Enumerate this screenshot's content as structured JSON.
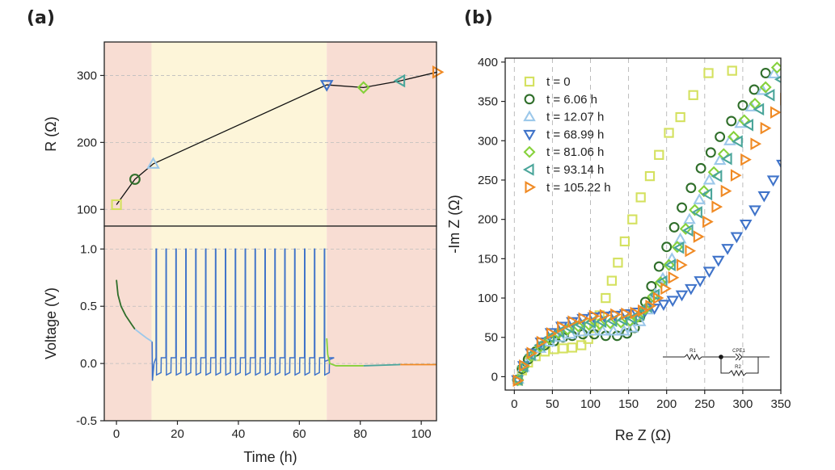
{
  "panels": {
    "a": "(a)",
    "b": "(b)"
  },
  "chart_data": [
    {
      "id": "a-top",
      "type": "line",
      "ylabel": "R (Ω)",
      "xlim": [
        -4,
        105
      ],
      "ylim": [
        75,
        350
      ],
      "yticks": [
        100,
        200,
        300
      ],
      "x": [
        0,
        6.06,
        12.07,
        68.99,
        81.06,
        93.14,
        105.22
      ],
      "series": [
        {
          "values": [
            107,
            145,
            168,
            286,
            282,
            292,
            305
          ]
        }
      ],
      "markers": [
        {
          "shape": "square",
          "color": "#d4e15f"
        },
        {
          "shape": "circle",
          "color": "#2f6e2a"
        },
        {
          "shape": "triangle-up",
          "color": "#9cc8ea"
        },
        {
          "shape": "triangle-down",
          "color": "#3f73c9"
        },
        {
          "shape": "diamond",
          "color": "#86d13b"
        },
        {
          "shape": "triangle-left",
          "color": "#4aa59a"
        },
        {
          "shape": "triangle-right",
          "color": "#f08a24"
        }
      ],
      "shaded_regions": [
        {
          "from": -4,
          "to": 11.5,
          "color": "#f8ddd3"
        },
        {
          "from": 11.5,
          "to": 69,
          "color": "#fdf5d9"
        },
        {
          "from": 69,
          "to": 105,
          "color": "#f8ddd3"
        }
      ]
    },
    {
      "id": "a-bottom",
      "type": "line",
      "xlabel": "Time (h)",
      "ylabel": "Voltage (V)",
      "xlim": [
        -4,
        105
      ],
      "ylim": [
        -0.5,
        1.2
      ],
      "xticks": [
        0,
        20,
        40,
        60,
        80,
        100
      ],
      "yticks": [
        -0.5,
        0.0,
        0.5,
        1.0
      ],
      "ytick_labels": [
        "-0.5",
        "0.0",
        "0.5",
        "1.0"
      ],
      "relaxation_1": {
        "color_a": "#2f6e2a",
        "color_b": "#9cc8ea",
        "points": [
          [
            0,
            0.73
          ],
          [
            0.5,
            0.6
          ],
          [
            1.5,
            0.5
          ],
          [
            3,
            0.42
          ],
          [
            5,
            0.34
          ],
          [
            6.06,
            0.3
          ],
          [
            8,
            0.26
          ],
          [
            10,
            0.22
          ],
          [
            11.7,
            0.19
          ]
        ]
      },
      "cycling": {
        "color": "#3f73c9",
        "drop": [
          [
            11.7,
            0.19
          ],
          [
            11.8,
            -0.15
          ],
          [
            12.3,
            0.0
          ]
        ],
        "cycles": 18,
        "t_start": 13,
        "t_end": 68.2,
        "v_rest": 0.0,
        "v_peak": 1.0,
        "v_dip": -0.1,
        "v_low": -0.08,
        "v_high": 0.05
      },
      "relaxation_2": {
        "segments": [
          {
            "color": "#86d13b",
            "points": [
              [
                68.99,
                0.22
              ],
              [
                69.3,
                0.08
              ],
              [
                70,
                0.0
              ],
              [
                72,
                -0.02
              ],
              [
                81.06,
                -0.02
              ]
            ]
          },
          {
            "color": "#4aa59a",
            "points": [
              [
                81.06,
                -0.02
              ],
              [
                93.14,
                -0.01
              ]
            ]
          },
          {
            "color": "#f08a24",
            "points": [
              [
                93.14,
                -0.01
              ],
              [
                105,
                -0.01
              ]
            ]
          }
        ]
      },
      "shaded_regions": [
        {
          "from": -4,
          "to": 11.5,
          "color": "#f8ddd3"
        },
        {
          "from": 11.5,
          "to": 69,
          "color": "#fdf5d9"
        },
        {
          "from": 69,
          "to": 105,
          "color": "#f8ddd3"
        }
      ]
    },
    {
      "id": "b",
      "type": "scatter",
      "xlabel": "Re Z (Ω)",
      "ylabel": "-Im Z (Ω)",
      "xlim": [
        -12,
        350
      ],
      "ylim": [
        -17,
        405
      ],
      "xticks": [
        0,
        50,
        100,
        150,
        200,
        250,
        300,
        350
      ],
      "yticks": [
        0,
        50,
        100,
        150,
        200,
        250,
        300,
        350,
        400
      ],
      "grid": "vertical dashed",
      "legend_position": "top-left",
      "series": [
        {
          "name": "t = 0",
          "shape": "square",
          "color": "#d4e15f",
          "points": [
            [
              5,
              -5
            ],
            [
              10,
              8
            ],
            [
              18,
              18
            ],
            [
              28,
              26
            ],
            [
              40,
              32
            ],
            [
              52,
              35
            ],
            [
              64,
              36
            ],
            [
              76,
              37
            ],
            [
              88,
              40
            ],
            [
              97,
              48
            ],
            [
              105,
              62
            ],
            [
              112,
              78
            ],
            [
              120,
              100
            ],
            [
              128,
              122
            ],
            [
              136,
              145
            ],
            [
              145,
              172
            ],
            [
              155,
              200
            ],
            [
              166,
              228
            ],
            [
              178,
              255
            ],
            [
              190,
              282
            ],
            [
              203,
              310
            ],
            [
              218,
              330
            ],
            [
              235,
              358
            ],
            [
              255,
              386
            ],
            [
              286,
              389
            ]
          ]
        },
        {
          "name": "t = 6.06 h",
          "shape": "circle",
          "color": "#2f6e2a",
          "points": [
            [
              4,
              -4
            ],
            [
              10,
              10
            ],
            [
              18,
              22
            ],
            [
              28,
              32
            ],
            [
              40,
              40
            ],
            [
              52,
              45
            ],
            [
              64,
              50
            ],
            [
              76,
              52
            ],
            [
              90,
              54
            ],
            [
              105,
              54
            ],
            [
              120,
              52
            ],
            [
              135,
              52
            ],
            [
              148,
              55
            ],
            [
              158,
              62
            ],
            [
              165,
              76
            ],
            [
              172,
              95
            ],
            [
              180,
              115
            ],
            [
              190,
              140
            ],
            [
              200,
              165
            ],
            [
              210,
              190
            ],
            [
              220,
              215
            ],
            [
              232,
              240
            ],
            [
              245,
              265
            ],
            [
              258,
              285
            ],
            [
              270,
              305
            ],
            [
              285,
              325
            ],
            [
              300,
              345
            ],
            [
              315,
              365
            ],
            [
              330,
              386
            ]
          ]
        },
        {
          "name": "t = 12.07 h",
          "shape": "triangle-up",
          "color": "#9cc8ea",
          "points": [
            [
              5,
              -3
            ],
            [
              12,
              12
            ],
            [
              22,
              26
            ],
            [
              34,
              36
            ],
            [
              46,
              44
            ],
            [
              60,
              50
            ],
            [
              74,
              54
            ],
            [
              88,
              57
            ],
            [
              102,
              58
            ],
            [
              116,
              58
            ],
            [
              130,
              58
            ],
            [
              144,
              58
            ],
            [
              155,
              62
            ],
            [
              165,
              70
            ],
            [
              175,
              85
            ],
            [
              185,
              105
            ],
            [
              195,
              125
            ],
            [
              207,
              150
            ],
            [
              218,
              175
            ],
            [
              230,
              200
            ],
            [
              243,
              225
            ],
            [
              256,
              250
            ],
            [
              270,
              275
            ],
            [
              283,
              300
            ],
            [
              297,
              322
            ],
            [
              311,
              343
            ],
            [
              326,
              364
            ],
            [
              341,
              385
            ]
          ]
        },
        {
          "name": "t = 68.99 h",
          "shape": "triangle-down",
          "color": "#3f73c9",
          "points": [
            [
              4,
              -4
            ],
            [
              12,
              14
            ],
            [
              22,
              30
            ],
            [
              35,
              44
            ],
            [
              48,
              56
            ],
            [
              62,
              64
            ],
            [
              76,
              70
            ],
            [
              90,
              74
            ],
            [
              104,
              76
            ],
            [
              118,
              77
            ],
            [
              132,
              78
            ],
            [
              146,
              80
            ],
            [
              160,
              82
            ],
            [
              172,
              84
            ],
            [
              184,
              87
            ],
            [
              196,
              92
            ],
            [
              208,
              97
            ],
            [
              220,
              104
            ],
            [
              232,
              112
            ],
            [
              244,
              122
            ],
            [
              256,
              134
            ],
            [
              268,
              148
            ],
            [
              280,
              163
            ],
            [
              292,
              178
            ],
            [
              304,
              194
            ],
            [
              316,
              212
            ],
            [
              328,
              230
            ],
            [
              340,
              250
            ],
            [
              352,
              270
            ]
          ]
        },
        {
          "name": "t = 81.06 h",
          "shape": "diamond",
          "color": "#86d13b",
          "points": [
            [
              5,
              -4
            ],
            [
              12,
              12
            ],
            [
              22,
              26
            ],
            [
              34,
              38
            ],
            [
              46,
              48
            ],
            [
              58,
              55
            ],
            [
              70,
              60
            ],
            [
              84,
              64
            ],
            [
              98,
              66
            ],
            [
              112,
              67
            ],
            [
              126,
              68
            ],
            [
              140,
              69
            ],
            [
              152,
              71
            ],
            [
              162,
              76
            ],
            [
              172,
              86
            ],
            [
              182,
              102
            ],
            [
              192,
              120
            ],
            [
              203,
              142
            ],
            [
              214,
              165
            ],
            [
              225,
              188
            ],
            [
              237,
              212
            ],
            [
              249,
              236
            ],
            [
              262,
              260
            ],
            [
              275,
              283
            ],
            [
              288,
              305
            ],
            [
              302,
              326
            ],
            [
              316,
              347
            ],
            [
              330,
              368
            ],
            [
              345,
              393
            ]
          ]
        },
        {
          "name": "t = 93.14 h",
          "shape": "triangle-left",
          "color": "#4aa59a",
          "points": [
            [
              5,
              -4
            ],
            [
              12,
              13
            ],
            [
              22,
              28
            ],
            [
              34,
              40
            ],
            [
              47,
              50
            ],
            [
              60,
              57
            ],
            [
              73,
              62
            ],
            [
              87,
              66
            ],
            [
              101,
              69
            ],
            [
              115,
              70
            ],
            [
              129,
              71
            ],
            [
              143,
              72
            ],
            [
              155,
              74
            ],
            [
              165,
              79
            ],
            [
              175,
              89
            ],
            [
              185,
              104
            ],
            [
              195,
              121
            ],
            [
              206,
              142
            ],
            [
              217,
              164
            ],
            [
              229,
              186
            ],
            [
              241,
              209
            ],
            [
              254,
              232
            ],
            [
              267,
              255
            ],
            [
              280,
              277
            ],
            [
              294,
              299
            ],
            [
              308,
              320
            ],
            [
              322,
              340
            ],
            [
              336,
              358
            ],
            [
              350,
              378
            ]
          ]
        },
        {
          "name": "t = 105.22 h",
          "shape": "triangle-right",
          "color": "#f08a24",
          "points": [
            [
              4,
              -5
            ],
            [
              12,
              14
            ],
            [
              22,
              30
            ],
            [
              35,
              44
            ],
            [
              48,
              55
            ],
            [
              62,
              63
            ],
            [
              76,
              70
            ],
            [
              90,
              74
            ],
            [
              104,
              77
            ],
            [
              118,
              78
            ],
            [
              132,
              79
            ],
            [
              146,
              80
            ],
            [
              158,
              81
            ],
            [
              168,
              84
            ],
            [
              178,
              90
            ],
            [
              188,
              100
            ],
            [
              198,
              112
            ],
            [
              208,
              126
            ],
            [
              219,
              142
            ],
            [
              230,
              160
            ],
            [
              241,
              178
            ],
            [
              253,
              197
            ],
            [
              265,
              216
            ],
            [
              277,
              236
            ],
            [
              290,
              256
            ],
            [
              303,
              276
            ],
            [
              316,
              296
            ],
            [
              329,
              316
            ],
            [
              342,
              336
            ],
            [
              355,
              353
            ]
          ]
        }
      ],
      "inset_circuit": {
        "labels": [
          "R1",
          "CPE1",
          "R2"
        ]
      }
    }
  ]
}
